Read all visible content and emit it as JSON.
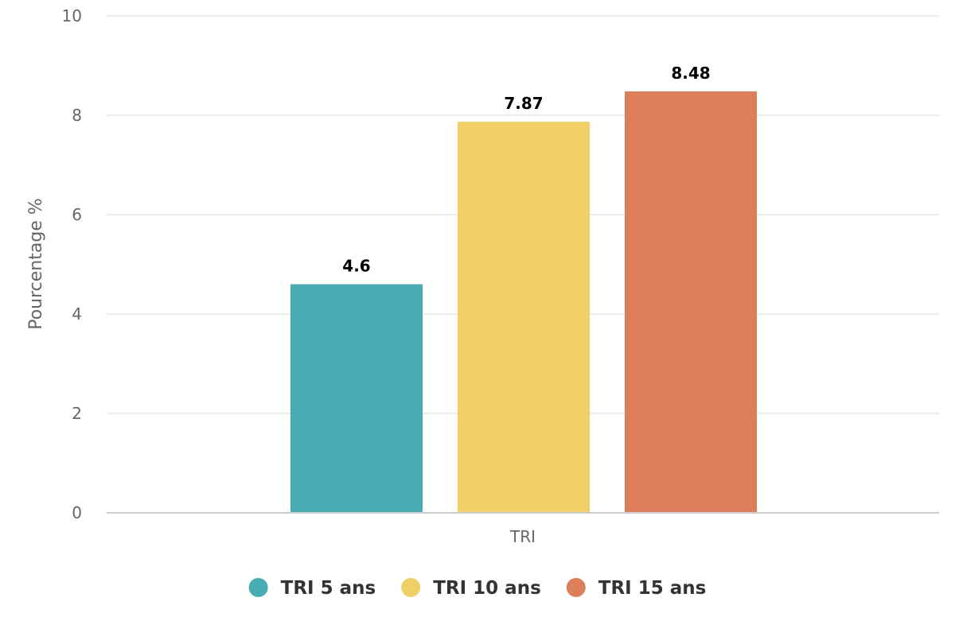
{
  "chart_data": {
    "type": "bar",
    "categories": [
      "TRI"
    ],
    "series": [
      {
        "name": "TRI 5 ans",
        "values": [
          4.6
        ],
        "color": "#48acb2"
      },
      {
        "name": "TRI 10 ans",
        "values": [
          7.87
        ],
        "color": "#f0cf66"
      },
      {
        "name": "TRI 15 ans",
        "values": [
          8.48
        ],
        "color": "#dc7e59"
      }
    ],
    "title": "",
    "xlabel": "",
    "ylabel": "Pourcentage %",
    "ylim": [
      0,
      10
    ],
    "yticks": [
      "0",
      "2",
      "4",
      "6",
      "8",
      "10"
    ],
    "grid": true,
    "legend": "bottom-center",
    "data_labels": [
      "4.6",
      "7.87",
      "8.48"
    ]
  }
}
